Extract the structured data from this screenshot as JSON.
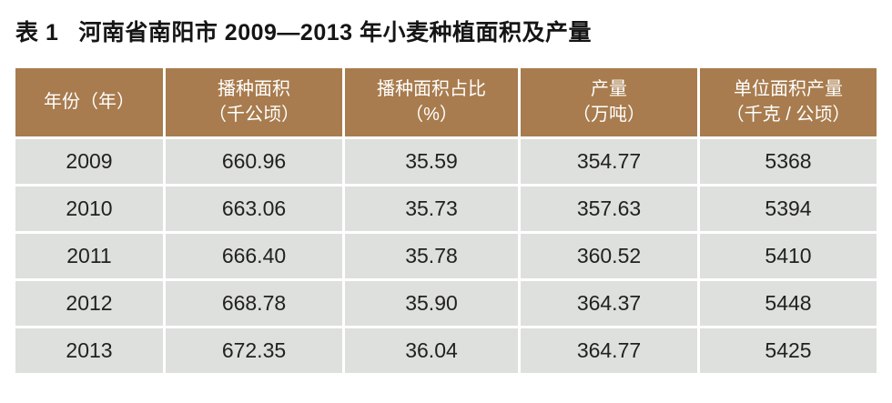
{
  "page": {
    "background": "#ffffff"
  },
  "title": {
    "prefix": "表 1",
    "main": "河南省南阳市 2009—2013 年小麦种植面积及产量"
  },
  "colors": {
    "header_bg": "#a87c4e",
    "header_text": "#ffffff",
    "row_bg": "#dee0dd",
    "grid_line": "#ffffff",
    "cell_text": "#212121",
    "title_text": "#151515"
  },
  "table": {
    "columns": [
      {
        "label": "年份（年）",
        "unit": ""
      },
      {
        "label": "播种面积",
        "unit": "（千公顷）"
      },
      {
        "label": "播种面积占比",
        "unit": "（%）"
      },
      {
        "label": "产量",
        "unit": "（万吨）"
      },
      {
        "label": "单位面积产量",
        "unit": "（千克 / 公顷）"
      }
    ],
    "rows": [
      {
        "year": "2009",
        "values": [
          "2009",
          "660.96",
          "35.59",
          "354.77",
          "5368"
        ]
      },
      {
        "year": "2010",
        "values": [
          "2010",
          "663.06",
          "35.73",
          "357.63",
          "5394"
        ]
      },
      {
        "year": "2011",
        "values": [
          "2011",
          "666.40",
          "35.78",
          "360.52",
          "5410"
        ]
      },
      {
        "year": "2012",
        "values": [
          "2012",
          "668.78",
          "35.90",
          "364.37",
          "5448"
        ]
      },
      {
        "year": "2013",
        "values": [
          "2013",
          "672.35",
          "36.04",
          "364.77",
          "5425"
        ]
      }
    ]
  }
}
